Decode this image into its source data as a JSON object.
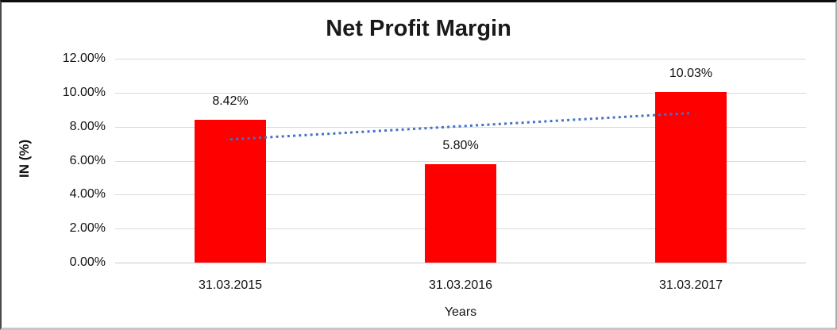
{
  "chart_data": {
    "type": "bar",
    "title": "Net Profit Margin",
    "xlabel": "Years",
    "ylabel": "IN (%)",
    "categories": [
      "31.03.2015",
      "31.03.2016",
      "31.03.2017"
    ],
    "values": [
      8.42,
      5.8,
      10.03
    ],
    "data_labels": [
      "8.42%",
      "5.80%",
      "10.03%"
    ],
    "yticks": [
      0,
      2,
      4,
      6,
      8,
      10,
      12
    ],
    "ytick_labels": [
      "0.00%",
      "2.00%",
      "4.00%",
      "6.00%",
      "8.00%",
      "10.00%",
      "12.00%"
    ],
    "ylim": [
      0,
      12
    ],
    "grid": true,
    "legend": "none",
    "bar_color": "#ff0000",
    "gridline_color": "#d9d9d9",
    "text_color": "#111111",
    "trendline": {
      "type": "linear",
      "style": "dotted",
      "color": "#4472c4",
      "from_category_index": 0,
      "to_category_index": 2,
      "from_value": 7.25,
      "to_value": 8.8
    }
  }
}
